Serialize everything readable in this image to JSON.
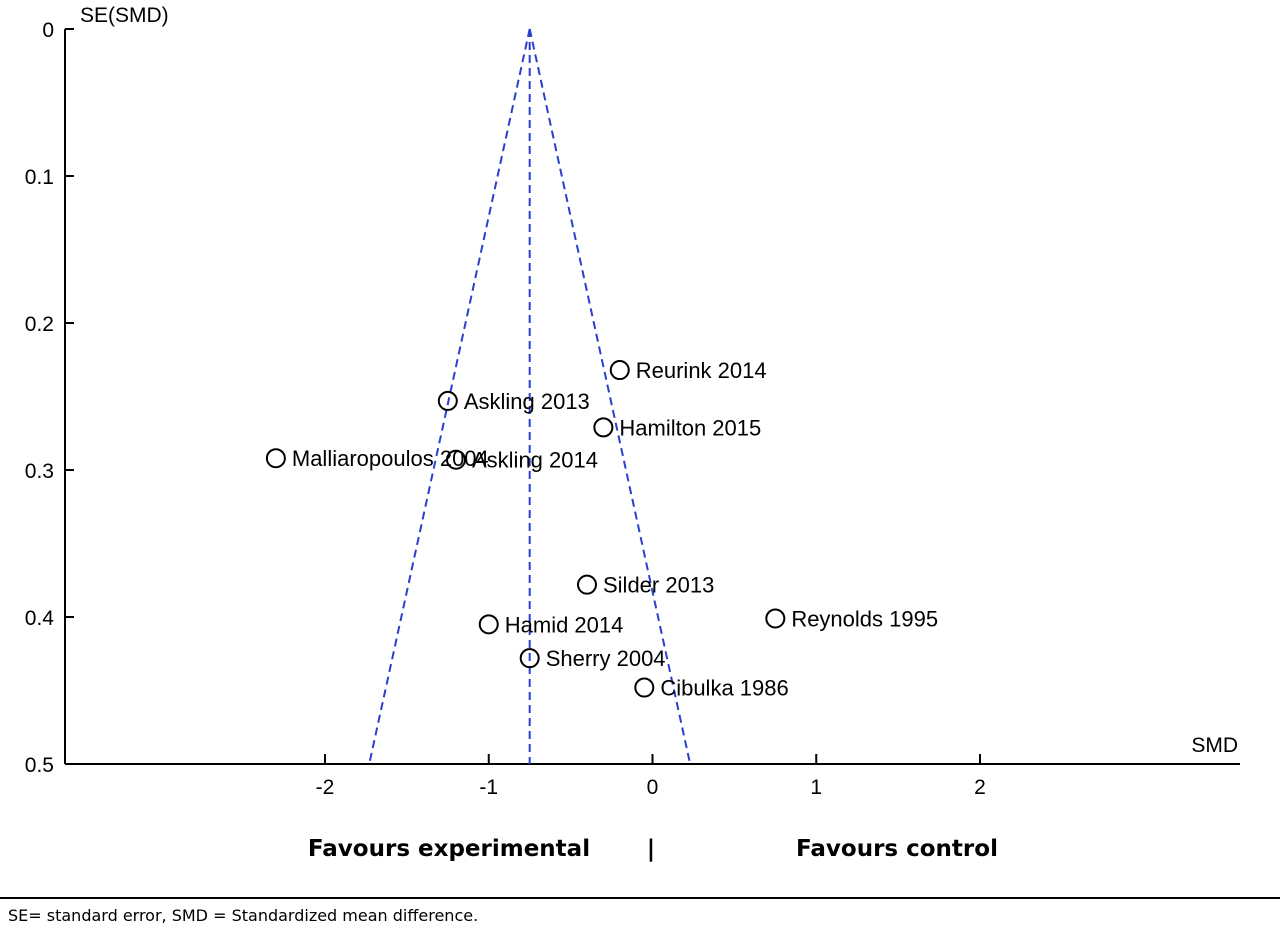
{
  "chart_data": {
    "type": "scatter",
    "subtype": "funnel plot",
    "xlabel": "SMD",
    "ylabel": "SE(SMD)",
    "xlim": [
      -2.0,
      2.0
    ],
    "ylim": [
      0,
      0.5
    ],
    "y_reversed": true,
    "x_ticks": [
      -2,
      -1,
      0,
      1,
      2
    ],
    "x_tick_labels": [
      "-2",
      "-1",
      "0",
      "1",
      "2"
    ],
    "y_ticks": [
      0,
      0.1,
      0.2,
      0.3,
      0.4,
      0.5
    ],
    "y_tick_labels": [
      "0",
      "0.1",
      "0.2",
      "0.3",
      "0.4",
      "0.5"
    ],
    "pooled_smd": -0.75,
    "funnel_ci_multiplier": 1.96,
    "funnel_line_color": "#2b3fcf",
    "points": [
      {
        "label": "Reurink 2014",
        "smd": -0.2,
        "se": 0.232
      },
      {
        "label": "Askling  2013",
        "smd": -1.25,
        "se": 0.253
      },
      {
        "label": "Hamilton 2015",
        "smd": -0.3,
        "se": 0.271
      },
      {
        "label": "Malliaropoulos 2004",
        "smd": -2.3,
        "se": 0.292
      },
      {
        "label": "Askling 2014",
        "smd": -1.2,
        "se": 0.293
      },
      {
        "label": "Silder 2013",
        "smd": -0.4,
        "se": 0.378
      },
      {
        "label": "Reynolds 1995",
        "smd": 0.75,
        "se": 0.401
      },
      {
        "label": "Hamid 2014",
        "smd": -1.0,
        "se": 0.405
      },
      {
        "label": "Sherry 2004",
        "smd": -0.75,
        "se": 0.428
      },
      {
        "label": "Cibulka 1986",
        "smd": -0.05,
        "se": 0.448
      }
    ]
  },
  "favours": {
    "left": "Favours experimental",
    "divider": "|",
    "right": "Favours control"
  },
  "footnote": "SE= standard error, SMD = Standardized mean difference."
}
